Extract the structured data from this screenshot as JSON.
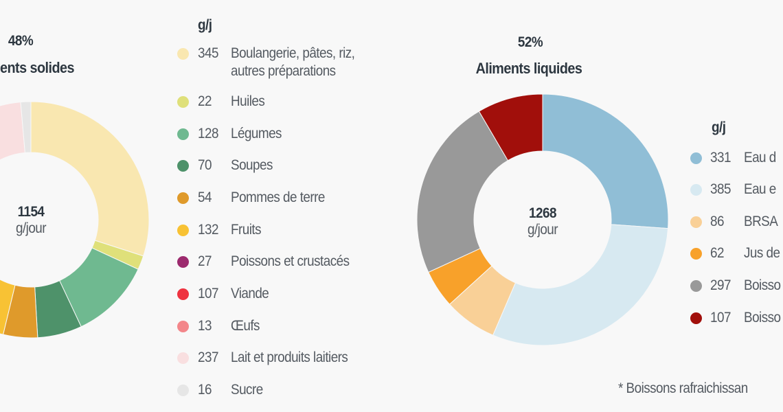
{
  "chart_data": [
    {
      "type": "pie",
      "donut": true,
      "title": "ents solides",
      "percent": "48%",
      "center_value": "1154",
      "center_unit": "g/jour",
      "legend_header": "g/j",
      "legend_placement": "right",
      "slices": [
        {
          "value": 345,
          "label": "Boulangerie, pâtes, riz,",
          "label2": "autres préparations",
          "color": "#f9e7b0"
        },
        {
          "value": 22,
          "label": "Huiles",
          "color": "#dfe07a"
        },
        {
          "value": 128,
          "label": "Légumes",
          "color": "#6fb990"
        },
        {
          "value": 70,
          "label": "Soupes",
          "color": "#4e926a"
        },
        {
          "value": 54,
          "label": "Pommes de terre",
          "color": "#df9a2b"
        },
        {
          "value": 132,
          "label": "Fruits",
          "color": "#f8c234"
        },
        {
          "value": 27,
          "label": "Poissons et crustacés",
          "color": "#9c2a6e"
        },
        {
          "value": 107,
          "label": "Viande",
          "color": "#ee3340"
        },
        {
          "value": 13,
          "label": "Œufs",
          "color": "#f3868a"
        },
        {
          "value": 237,
          "label": "Lait et produits laitiers",
          "color": "#f9dfe0"
        },
        {
          "value": 16,
          "label": "Sucre",
          "color": "#e6e6e6"
        }
      ]
    },
    {
      "type": "pie",
      "donut": true,
      "title": "Aliments liquides",
      "percent": "52%",
      "center_value": "1268",
      "center_unit": "g/jour",
      "legend_header": "g/j",
      "legend_placement": "right",
      "slices": [
        {
          "value": 331,
          "label": "Eau d",
          "color": "#90bed6"
        },
        {
          "value": 385,
          "label": "Eau e",
          "color": "#d7e9f1"
        },
        {
          "value": 86,
          "label": "BRSA",
          "color": "#f9d097"
        },
        {
          "value": 62,
          "label": "Jus de",
          "color": "#f8a12a"
        },
        {
          "value": 297,
          "label": "Boisso",
          "color": "#999999"
        },
        {
          "value": 107,
          "label": "Boisso",
          "color": "#a10f0b"
        }
      ]
    }
  ],
  "footnote": "* Boissons rafraichissan"
}
